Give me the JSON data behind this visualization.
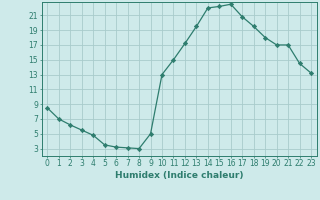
{
  "x": [
    0,
    1,
    2,
    3,
    4,
    5,
    6,
    7,
    8,
    9,
    10,
    11,
    12,
    13,
    14,
    15,
    16,
    17,
    18,
    19,
    20,
    21,
    22,
    23
  ],
  "y": [
    8.5,
    7.0,
    6.2,
    5.5,
    4.8,
    3.5,
    3.2,
    3.1,
    3.0,
    5.0,
    13.0,
    15.0,
    17.2,
    19.5,
    22.0,
    22.2,
    22.5,
    20.8,
    19.5,
    18.0,
    17.0,
    17.0,
    14.5,
    13.2
  ],
  "line_color": "#2e7d6e",
  "marker": "D",
  "marker_size": 2.2,
  "bg_color": "#ceeaea",
  "grid_color": "#a8cccc",
  "xlabel": "Humidex (Indice chaleur)",
  "xlim": [
    -0.5,
    23.5
  ],
  "ylim": [
    2.0,
    22.8
  ],
  "yticks": [
    3,
    5,
    7,
    9,
    11,
    13,
    15,
    17,
    19,
    21
  ],
  "xticks": [
    0,
    1,
    2,
    3,
    4,
    5,
    6,
    7,
    8,
    9,
    10,
    11,
    12,
    13,
    14,
    15,
    16,
    17,
    18,
    19,
    20,
    21,
    22,
    23
  ],
  "tick_color": "#2e7d6e",
  "label_fontsize": 6.5,
  "tick_fontsize": 5.5
}
